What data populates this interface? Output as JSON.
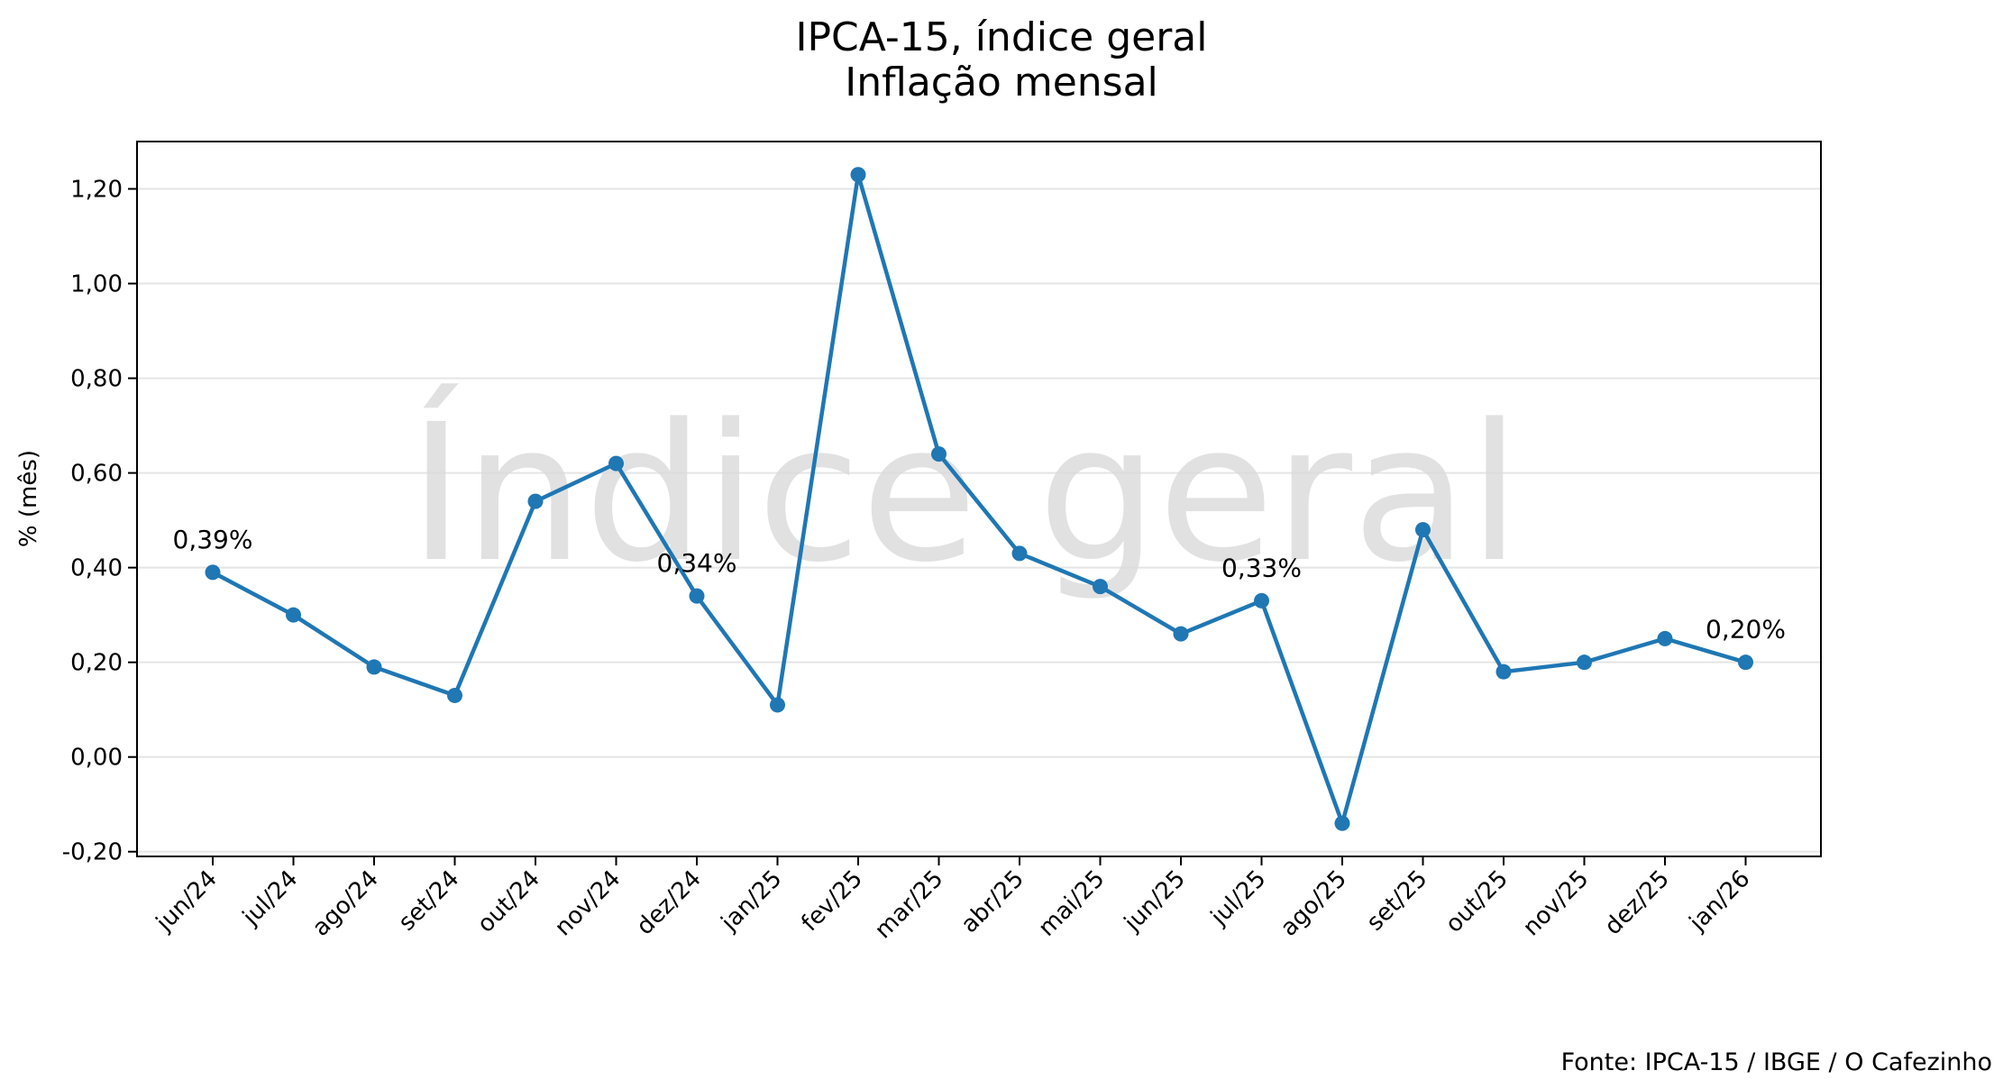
{
  "chart_data": {
    "type": "line",
    "title": "IPCA-15, índice geral",
    "subtitle": "Inflação mensal",
    "xlabel": "",
    "ylabel": "% (mês)",
    "watermark": "Índice geral",
    "source": "Fonte: IPCA-15 / IBGE / O Cafezinho",
    "categories": [
      "jun/24",
      "jul/24",
      "ago/24",
      "set/24",
      "out/24",
      "nov/24",
      "dez/24",
      "jan/25",
      "fev/25",
      "mar/25",
      "abr/25",
      "mai/25",
      "jun/25",
      "jul/25",
      "ago/25",
      "set/25",
      "out/25",
      "nov/25",
      "dez/25",
      "jan/26"
    ],
    "series": [
      {
        "values": [
          0.39,
          0.3,
          0.19,
          0.13,
          0.54,
          0.62,
          0.34,
          0.11,
          1.23,
          0.64,
          0.43,
          0.36,
          0.26,
          0.33,
          -0.14,
          0.48,
          0.18,
          0.2,
          0.25,
          0.2
        ]
      }
    ],
    "ylim": [
      -0.21,
      1.3
    ],
    "yticks": [
      -0.2,
      0.0,
      0.2,
      0.4,
      0.6,
      0.8,
      1.0,
      1.2
    ],
    "ytick_labels": [
      "-0,20",
      "0,00",
      "0,20",
      "0,40",
      "0,60",
      "0,80",
      "1,00",
      "1,20"
    ],
    "annotations": [
      {
        "index": 0,
        "text": "0,39%"
      },
      {
        "index": 6,
        "text": "0,34%"
      },
      {
        "index": 13,
        "text": "0,33%"
      },
      {
        "index": 19,
        "text": "0,20%"
      }
    ],
    "grid": "horizontal",
    "line_color": "#1f77b4",
    "grid_color": "#e5e5e5"
  }
}
